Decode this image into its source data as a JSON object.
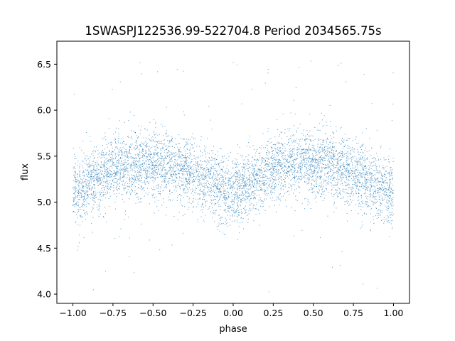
{
  "chart_data": {
    "type": "scatter",
    "title": "1SWASPJ122536.99-522704.8 Period 2034565.75s",
    "xlabel": "phase",
    "ylabel": "flux",
    "xlim": [
      -1.1,
      1.1
    ],
    "ylim": [
      3.9,
      6.75
    ],
    "xticks": [
      -1.0,
      -0.75,
      -0.5,
      -0.25,
      0.0,
      0.25,
      0.5,
      0.75,
      1.0
    ],
    "xtick_labels": [
      "−1.00",
      "−0.75",
      "−0.50",
      "−0.25",
      "0.00",
      "0.25",
      "0.50",
      "0.75",
      "1.00"
    ],
    "yticks": [
      4.0,
      4.5,
      5.0,
      5.5,
      6.0,
      6.5
    ],
    "ytick_labels": [
      "4.0",
      "4.5",
      "5.0",
      "5.5",
      "6.0",
      "6.5"
    ],
    "grid": false,
    "marker_color": "#1f77b4",
    "series": [
      {
        "x_range": [
          -1.0,
          1.0
        ],
        "trend_phase": [
          0.0,
          0.1,
          0.2,
          0.3,
          0.4,
          0.5,
          0.6,
          0.7,
          0.8,
          0.9,
          1.0
        ],
        "trend_flux": [
          5.1,
          5.2,
          5.32,
          5.4,
          5.42,
          5.42,
          5.4,
          5.35,
          5.27,
          5.18,
          5.1
        ],
        "scatter_sd": 0.18,
        "min_flux": 4.02,
        "max_flux": 6.6
      }
    ]
  }
}
